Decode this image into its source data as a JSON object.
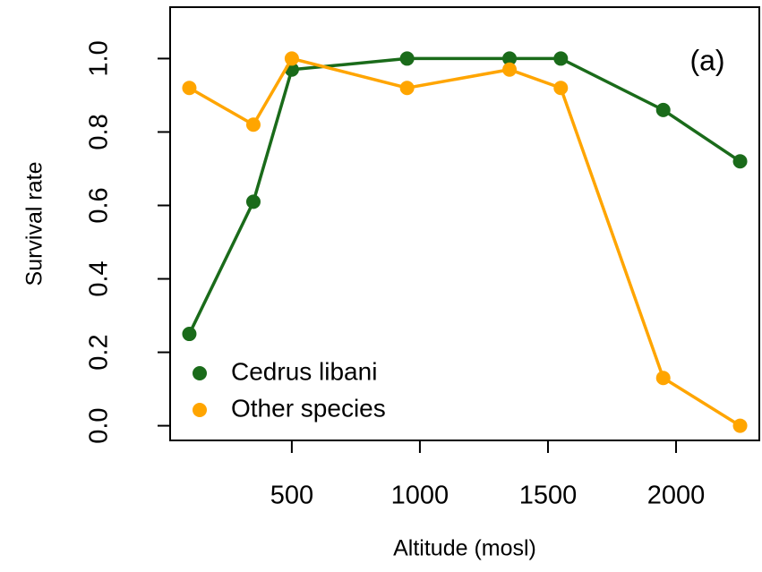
{
  "chart_data": {
    "type": "line",
    "xlabel": "Altitude (mosl)",
    "ylabel": "Survival rate",
    "annotation": "(a)",
    "x": [
      100,
      350,
      500,
      950,
      1350,
      1550,
      1950,
      2250
    ],
    "series": [
      {
        "name": "Cedrus libani",
        "color": "#1a6b1a",
        "values": [
          0.25,
          0.61,
          0.97,
          1.0,
          1.0,
          1.0,
          0.86,
          0.72
        ]
      },
      {
        "name": "Other species",
        "color": "#ffa500",
        "values": [
          0.92,
          0.82,
          1.0,
          0.92,
          0.97,
          0.92,
          0.13,
          0.0
        ]
      }
    ],
    "xlim": [
      25,
      2325
    ],
    "xticks": [
      500,
      1000,
      1500,
      2000
    ],
    "ylim": [
      -0.04,
      1.14
    ],
    "yticks": [
      {
        "value": 0,
        "label": "0.0"
      },
      {
        "value": 0.2,
        "label": "0.2"
      },
      {
        "value": 0.4,
        "label": "0.4"
      },
      {
        "value": 0.6,
        "label": "0.6"
      },
      {
        "value": 0.8,
        "label": "0.8"
      },
      {
        "value": 1,
        "label": "1.0"
      }
    ],
    "legend": "bottomleft"
  }
}
